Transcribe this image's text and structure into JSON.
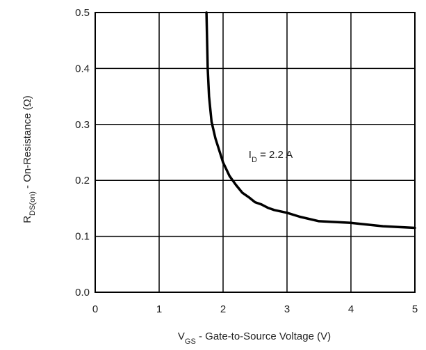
{
  "chart_data": {
    "type": "line",
    "title": "",
    "xlabel": {
      "main": "V",
      "sub": "GS",
      "rest": " - Gate-to-Source Voltage (V)"
    },
    "ylabel": {
      "main": "R",
      "sub": "DS(on)",
      "rest": " - On-Resistance (Ω)"
    },
    "xlim": [
      0,
      5
    ],
    "ylim": [
      0.0,
      0.5
    ],
    "xticks": [
      0,
      1,
      2,
      3,
      4,
      5
    ],
    "xtick_labels": [
      "0",
      "1",
      "2",
      "3",
      "4",
      "5"
    ],
    "yticks": [
      0.0,
      0.1,
      0.2,
      0.3,
      0.4,
      0.5
    ],
    "ytick_labels": [
      "0.0",
      "0.1",
      "0.2",
      "0.3",
      "0.4",
      "0.5"
    ],
    "grid": true,
    "annotation": {
      "main": "I",
      "sub": "D",
      "rest": " = 2.2 A",
      "x": 2.4,
      "y": 0.24
    },
    "series": [
      {
        "x": [
          1.74,
          1.76,
          1.78,
          1.82,
          1.88,
          1.95,
          2.0,
          2.1,
          2.2,
          2.3,
          2.4,
          2.5,
          2.6,
          2.7,
          2.8,
          3.0,
          3.2,
          3.5,
          4.0,
          4.5,
          5.0
        ],
        "y": [
          0.5,
          0.4,
          0.35,
          0.305,
          0.275,
          0.25,
          0.232,
          0.208,
          0.192,
          0.178,
          0.17,
          0.161,
          0.157,
          0.151,
          0.147,
          0.142,
          0.135,
          0.127,
          0.124,
          0.118,
          0.115
        ]
      }
    ]
  }
}
